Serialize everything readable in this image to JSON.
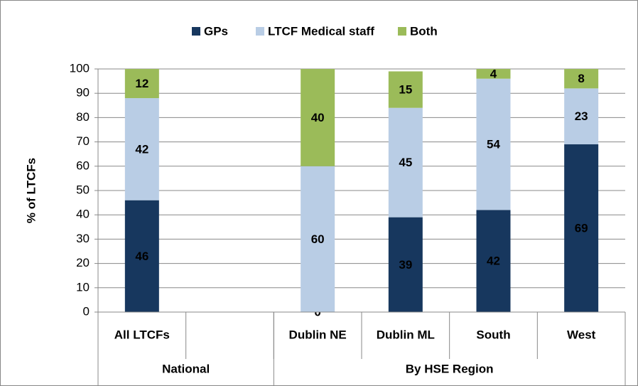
{
  "chart_data": {
    "type": "stacked_bar",
    "y_axis_label": "% of LTCFs",
    "categories": [
      "All LTCFs",
      null,
      "Dublin NE",
      "Dublin ML",
      "South",
      "West"
    ],
    "groups": [
      {
        "name": "National",
        "size": 2
      },
      {
        "name": "By HSE Region",
        "size": 4
      }
    ],
    "series": [
      {
        "name": "GPs",
        "color": "#17375e",
        "label_color": "#ffffff",
        "values": [
          46,
          null,
          0,
          39,
          42,
          69
        ]
      },
      {
        "name": "LTCF Medical staff",
        "color": "#b9cde5",
        "label_color": "#000000",
        "values": [
          42,
          null,
          60,
          45,
          54,
          23
        ]
      },
      {
        "name": "Both",
        "color": "#9bbb59",
        "label_color": "#000000",
        "values": [
          12,
          null,
          40,
          15,
          4,
          8
        ]
      }
    ],
    "ylim": [
      0,
      100
    ],
    "yticks": [
      0,
      10,
      20,
      30,
      40,
      50,
      60,
      70,
      80,
      90,
      100
    ],
    "grid": true,
    "legend": "top"
  }
}
